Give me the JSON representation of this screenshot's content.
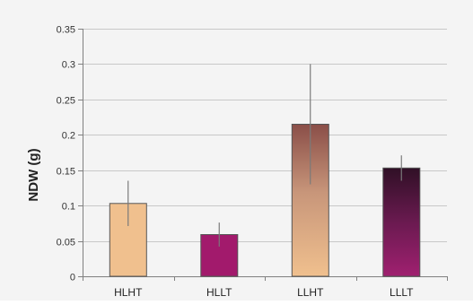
{
  "chart_data": {
    "type": "bar",
    "title": "",
    "xlabel": "",
    "ylabel": "NDW (g)",
    "categories": [
      "HLHT",
      "HLLT",
      "LLHT",
      "LLLT"
    ],
    "values": [
      0.103,
      0.059,
      0.215,
      0.153
    ],
    "errors": [
      0.032,
      0.017,
      0.085,
      0.018
    ],
    "ylim": [
      0,
      0.35
    ],
    "yticks": [
      0,
      0.05,
      0.1,
      0.15,
      0.2,
      0.25,
      0.3,
      0.35
    ],
    "ytick_labels": [
      "0",
      "0.05",
      "0.1",
      "0.15",
      "0.2",
      "0.25",
      "0.3",
      "0.35"
    ],
    "grid": true,
    "legend": "none",
    "colors": {
      "HLHT": "#f0c08e",
      "HLLT": "#a21a6c",
      "LLHT": "#c49070",
      "LLLT": "#7a1c5a",
      "gridline": "#c8c8c8",
      "axis": "#808080",
      "background": "#f4f4f4",
      "bar_edge": "#555555"
    }
  }
}
